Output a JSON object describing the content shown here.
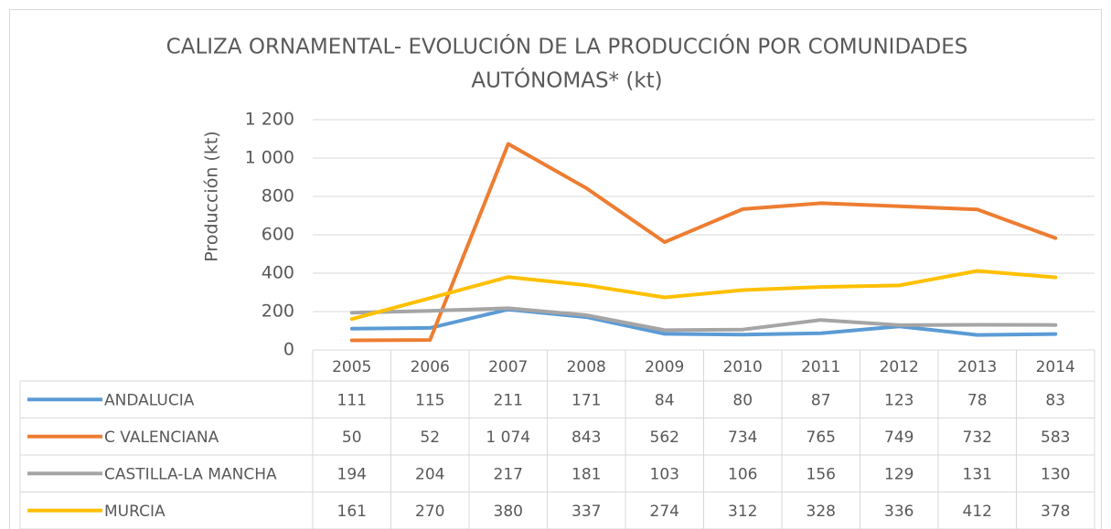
{
  "chart_data": {
    "type": "line",
    "title": [
      "CALIZA ORNAMENTAL- EVOLUCIÓN DE LA PRODUCCIÓN POR COMUNIDADES",
      "AUTÓNOMAS* (kt)"
    ],
    "y_label": "Producción (kt)",
    "categories": [
      "2005",
      "2006",
      "2007",
      "2008",
      "2009",
      "2010",
      "2011",
      "2012",
      "2013",
      "2014"
    ],
    "series": [
      {
        "name": "ANDALUCIA",
        "color": "#5b9bd5",
        "values": [
          111,
          115,
          211,
          171,
          84,
          80,
          87,
          123,
          78,
          83
        ]
      },
      {
        "name": "C VALENCIANA",
        "color": "#ed7d31",
        "values": [
          50,
          52,
          1074,
          843,
          562,
          734,
          765,
          749,
          732,
          583
        ],
        "value_labels": [
          "50",
          "52",
          "1 074",
          "843",
          "562",
          "734",
          "765",
          "749",
          "732",
          "583"
        ]
      },
      {
        "name": "CASTILLA-LA MANCHA",
        "color": "#a5a5a5",
        "values": [
          194,
          204,
          217,
          181,
          103,
          106,
          156,
          129,
          131,
          130
        ]
      },
      {
        "name": "MURCIA",
        "color": "#ffc000",
        "values": [
          161,
          270,
          380,
          337,
          274,
          312,
          328,
          336,
          412,
          378
        ]
      }
    ],
    "ylim": [
      0,
      1200
    ],
    "yticks": [
      0,
      200,
      400,
      600,
      800,
      {
        "value": 1000,
        "label": "1 000"
      },
      {
        "value": 1200,
        "label": "1 200"
      }
    ],
    "grid": true
  }
}
